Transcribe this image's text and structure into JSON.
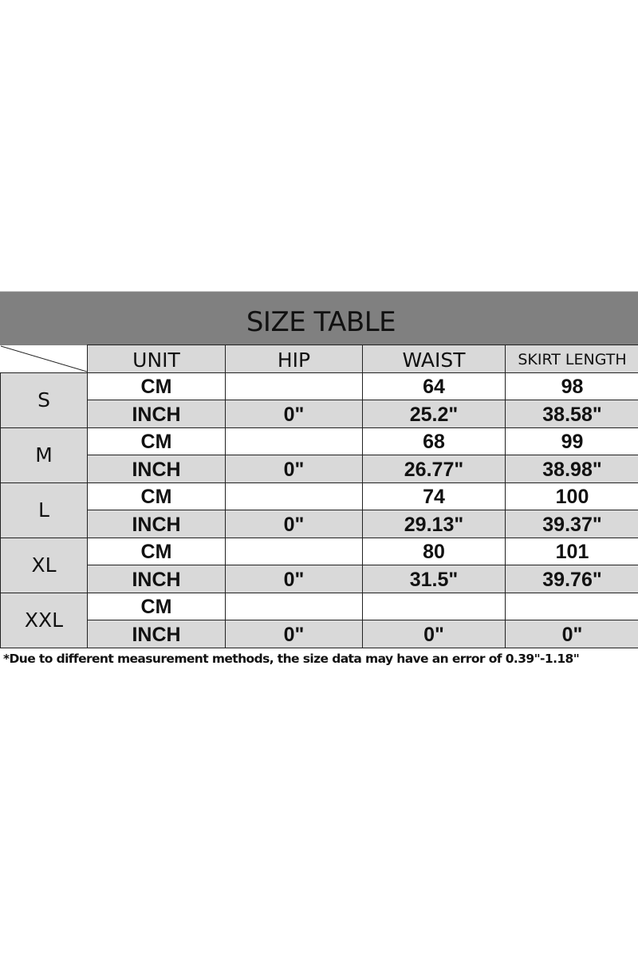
{
  "title": "SIZE TABLE",
  "headers": [
    "UNIT",
    "HIP",
    "WAIST",
    "SKIRT LENGTH"
  ],
  "rows": [
    {
      "size": "S",
      "cm": {
        "unit": "CM",
        "hip": "",
        "waist": "64",
        "length": "98"
      },
      "inch": {
        "unit": "INCH",
        "hip": "0\"",
        "waist": "25.2\"",
        "length": "38.58\""
      }
    },
    {
      "size": "M",
      "cm": {
        "unit": "CM",
        "hip": "",
        "waist": "68",
        "length": "99"
      },
      "inch": {
        "unit": "INCH",
        "hip": "0\"",
        "waist": "26.77\"",
        "length": "38.98\""
      }
    },
    {
      "size": "L",
      "cm": {
        "unit": "CM",
        "hip": "",
        "waist": "74",
        "length": "100"
      },
      "inch": {
        "unit": "INCH",
        "hip": "0\"",
        "waist": "29.13\"",
        "length": "39.37\""
      }
    },
    {
      "size": "XL",
      "cm": {
        "unit": "CM",
        "hip": "",
        "waist": "80",
        "length": "101"
      },
      "inch": {
        "unit": "INCH",
        "hip": "0\"",
        "waist": "31.5\"",
        "length": "39.76\""
      }
    },
    {
      "size": "XXL",
      "cm": {
        "unit": "CM",
        "hip": "",
        "waist": "",
        "length": ""
      },
      "inch": {
        "unit": "INCH",
        "hip": "0\"",
        "waist": "0\"",
        "length": "0\""
      }
    }
  ],
  "footnote": "*Due to different measurement methods, the size data may have an error of 0.39\"-1.18\"",
  "colors": {
    "band": "#808080",
    "cell_gray": "#d9d9d9",
    "cell_white": "#ffffff"
  }
}
